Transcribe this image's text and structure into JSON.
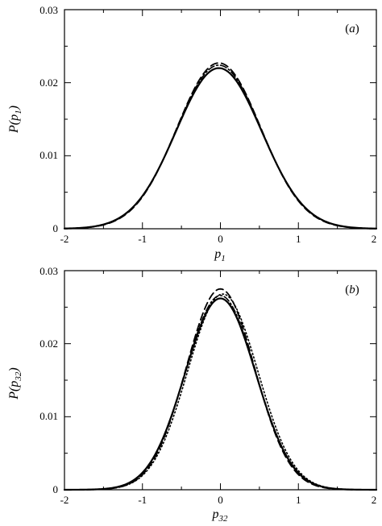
{
  "chart_data": [
    {
      "type": "line",
      "panel_label": "(a)",
      "panel_label_letter": "a",
      "xlabel_base": "p",
      "xlabel_sub": "1",
      "ylabel_base": "P(p",
      "ylabel_sub": "1",
      "ylabel_close": ")",
      "xlim": [
        -2,
        2
      ],
      "ylim": [
        0,
        0.03
      ],
      "xticks": [
        -2,
        -1,
        0,
        1,
        2
      ],
      "xtick_labels": [
        "-2",
        "-1",
        "0",
        "1",
        "2"
      ],
      "yticks": [
        0,
        0.01,
        0.02,
        0.03
      ],
      "ytick_labels": [
        "0",
        "0.01",
        "0.02",
        "0.03"
      ],
      "series": [
        {
          "style": "solid",
          "shape": {
            "peak": 0.022,
            "center": -0.02,
            "sigma": 0.55
          }
        },
        {
          "style": "dashed",
          "shape": {
            "peak": 0.0227,
            "center": -0.02,
            "sigma": 0.54
          }
        },
        {
          "style": "dash-dot",
          "shape": {
            "peak": 0.0224,
            "center": -0.02,
            "sigma": 0.545
          }
        }
      ]
    },
    {
      "type": "line",
      "panel_label": "(b)",
      "panel_label_letter": "b",
      "xlabel_base": "p",
      "xlabel_sub": "32",
      "ylabel_base": "P(p",
      "ylabel_sub": "32",
      "ylabel_close": ")",
      "xlim": [
        -2,
        2
      ],
      "ylim": [
        0,
        0.03
      ],
      "xticks": [
        -2,
        -1,
        0,
        1,
        2
      ],
      "xtick_labels": [
        "-2",
        "-1",
        "0",
        "1",
        "2"
      ],
      "yticks": [
        0,
        0.01,
        0.02,
        0.03
      ],
      "ytick_labels": [
        "0",
        "0.01",
        "0.02",
        "0.03"
      ],
      "series": [
        {
          "style": "solid",
          "shape": {
            "peak": 0.0262,
            "center": 0.0,
            "sigma": 0.455
          }
        },
        {
          "style": "dashed",
          "shape": {
            "peak": 0.0275,
            "center": 0.0,
            "sigma": 0.44
          }
        },
        {
          "style": "dotted",
          "shape": {
            "peak": 0.0268,
            "center": 0.03,
            "sigma": 0.45
          }
        },
        {
          "style": "dash-dot",
          "shape": {
            "peak": 0.0266,
            "center": 0.0,
            "sigma": 0.45
          }
        }
      ]
    }
  ]
}
